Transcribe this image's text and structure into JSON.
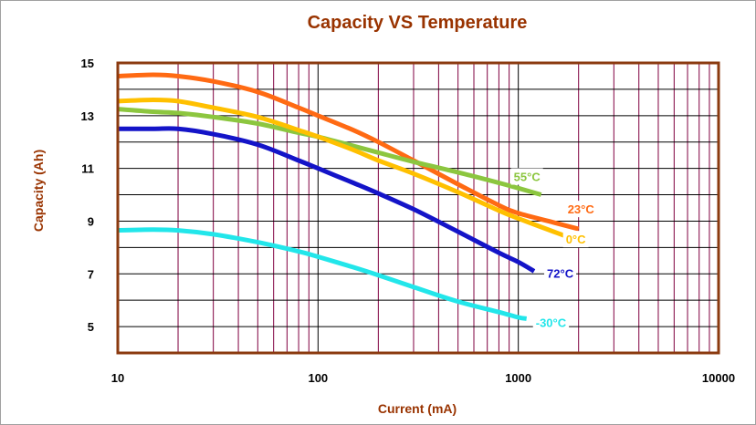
{
  "chart_data": {
    "type": "line",
    "title": "Capacity VS Temperature",
    "xlabel": "Current (mA)",
    "ylabel": "Capacity (Ah)",
    "x_scale": "log",
    "xlim": [
      10,
      10000
    ],
    "ylim": [
      4,
      15
    ],
    "x_ticks": [
      "10",
      "100",
      "1000",
      "10000"
    ],
    "y_ticks": [
      "5",
      "7",
      "9",
      "11",
      "13",
      "15"
    ],
    "grid": true,
    "colors": {
      "title": "#993300",
      "axis": "#8b3a0f",
      "major_grid": "#000000",
      "minor_grid": "#800040"
    },
    "series": [
      {
        "name": "23°C",
        "color": "#ff6a13",
        "points": [
          [
            10,
            14.5
          ],
          [
            15,
            14.55
          ],
          [
            20,
            14.5
          ],
          [
            30,
            14.3
          ],
          [
            50,
            13.9
          ],
          [
            80,
            13.3
          ],
          [
            100,
            13.0
          ],
          [
            150,
            12.45
          ],
          [
            200,
            12.0
          ],
          [
            300,
            11.3
          ],
          [
            500,
            10.4
          ],
          [
            800,
            9.6
          ],
          [
            1000,
            9.3
          ],
          [
            1500,
            8.95
          ],
          [
            2000,
            8.7
          ]
        ]
      },
      {
        "name": "55°C",
        "color": "#8cc63f",
        "points": [
          [
            10,
            13.25
          ],
          [
            15,
            13.15
          ],
          [
            20,
            13.1
          ],
          [
            30,
            12.95
          ],
          [
            50,
            12.7
          ],
          [
            80,
            12.35
          ],
          [
            100,
            12.2
          ],
          [
            150,
            11.85
          ],
          [
            200,
            11.6
          ],
          [
            300,
            11.25
          ],
          [
            500,
            10.85
          ],
          [
            800,
            10.45
          ],
          [
            1000,
            10.25
          ],
          [
            1300,
            10.0
          ]
        ]
      },
      {
        "name": "0°C",
        "color": "#ffc000",
        "points": [
          [
            10,
            13.55
          ],
          [
            15,
            13.6
          ],
          [
            20,
            13.55
          ],
          [
            30,
            13.3
          ],
          [
            50,
            12.95
          ],
          [
            80,
            12.45
          ],
          [
            100,
            12.2
          ],
          [
            150,
            11.7
          ],
          [
            200,
            11.3
          ],
          [
            300,
            10.8
          ],
          [
            500,
            10.1
          ],
          [
            800,
            9.4
          ],
          [
            1000,
            9.1
          ],
          [
            1500,
            8.6
          ],
          [
            2000,
            8.25
          ]
        ]
      },
      {
        "name": "72°C",
        "color": "#1414c8",
        "points": [
          [
            10,
            12.5
          ],
          [
            15,
            12.5
          ],
          [
            20,
            12.5
          ],
          [
            30,
            12.3
          ],
          [
            50,
            11.9
          ],
          [
            80,
            11.3
          ],
          [
            100,
            11.0
          ],
          [
            150,
            10.45
          ],
          [
            200,
            10.05
          ],
          [
            300,
            9.45
          ],
          [
            500,
            8.6
          ],
          [
            800,
            7.8
          ],
          [
            1000,
            7.45
          ],
          [
            1200,
            7.1
          ]
        ]
      },
      {
        "name": "-30°C",
        "color": "#22e6ea",
        "points": [
          [
            10,
            8.65
          ],
          [
            15,
            8.68
          ],
          [
            20,
            8.65
          ],
          [
            30,
            8.5
          ],
          [
            50,
            8.2
          ],
          [
            80,
            7.85
          ],
          [
            100,
            7.65
          ],
          [
            150,
            7.25
          ],
          [
            200,
            6.95
          ],
          [
            300,
            6.5
          ],
          [
            500,
            5.95
          ],
          [
            800,
            5.55
          ],
          [
            1000,
            5.35
          ],
          [
            1100,
            5.3
          ]
        ]
      }
    ]
  }
}
